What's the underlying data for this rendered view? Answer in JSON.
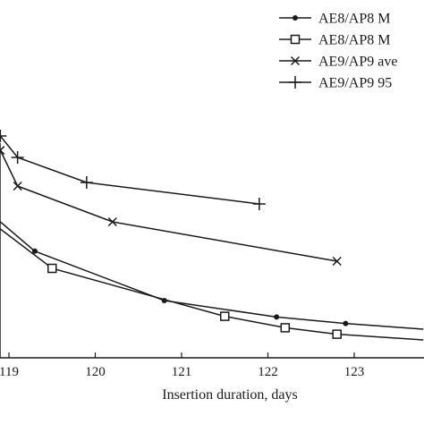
{
  "chart_data": {
    "type": "line",
    "title": "",
    "xlabel": "Insertion duration, days",
    "ylabel": "",
    "xlim": [
      119,
      124
    ],
    "xticks": [
      119,
      120,
      121,
      122,
      123
    ],
    "tick_labels": [
      "119",
      "120",
      "121",
      "122",
      "123"
    ],
    "grid": false,
    "legend_position": "top-right",
    "series": [
      {
        "name": "AE8/AP8 M",
        "marker": "dot",
        "x": [
          118.9,
          119.3,
          120.8,
          122.1,
          122.9,
          123.8
        ],
        "y": [
          0.88,
          0.798,
          0.66,
          0.614,
          0.596,
          0.58
        ]
      },
      {
        "name": "AE8/AP8 M",
        "marker": "square",
        "x": [
          118.9,
          119.5,
          121.5,
          122.2,
          122.8,
          123.8
        ],
        "y": [
          0.86,
          0.75,
          0.616,
          0.584,
          0.566,
          0.55
        ]
      },
      {
        "name": "AE9/AP9 ave",
        "marker": "x",
        "x": [
          118.9,
          119.1,
          120.2,
          122.8
        ],
        "y": [
          1.08,
          0.98,
          0.88,
          0.77
        ]
      },
      {
        "name": "AE9/AP9 95",
        "marker": "plus",
        "x": [
          118.9,
          119.1,
          119.9,
          121.9
        ],
        "y": [
          1.12,
          1.06,
          0.99,
          0.93
        ]
      }
    ]
  }
}
